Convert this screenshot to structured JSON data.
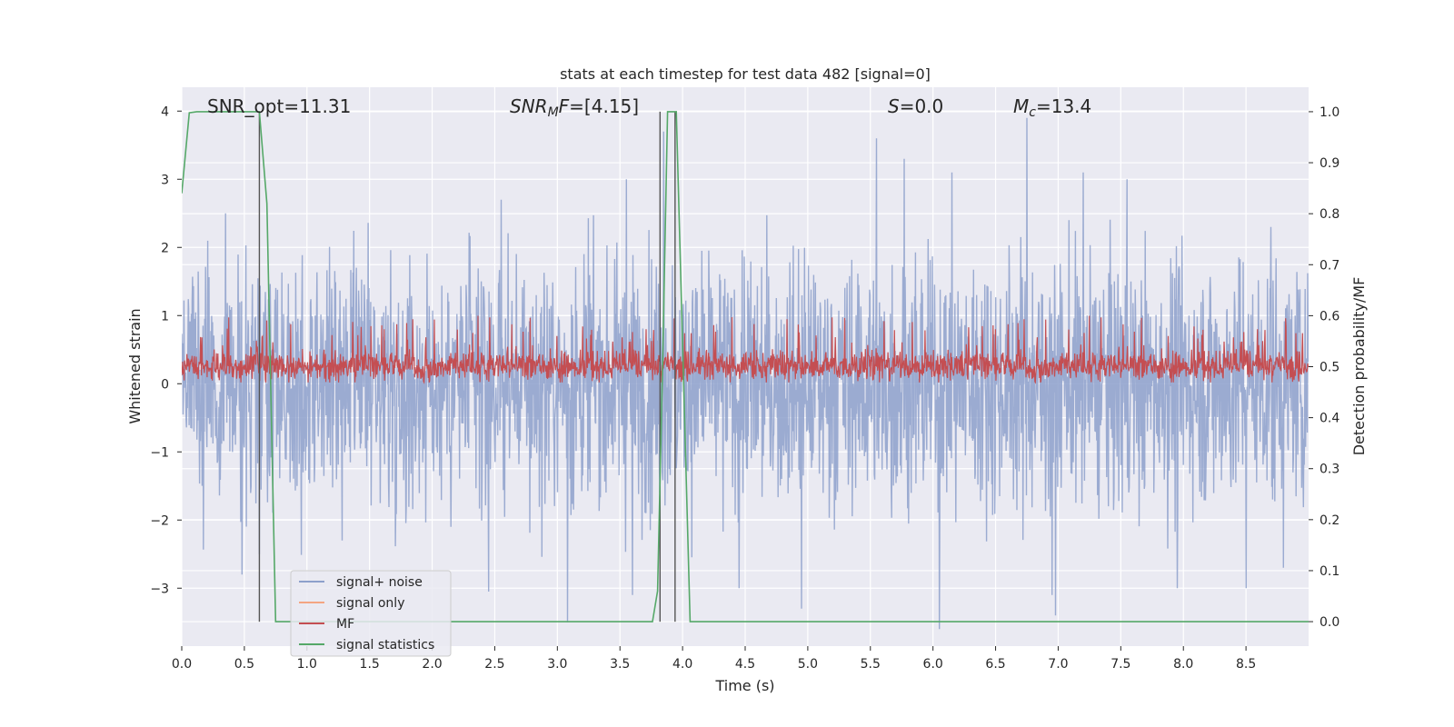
{
  "chart_data": {
    "type": "line",
    "title": "stats at each timestep for test data 482 [signal=0]",
    "xlabel": "Time (s)",
    "ylabel": "Whitened strain",
    "ylabel_right": "Detection probability/MF",
    "xlim": [
      0.0,
      9.0
    ],
    "ylim": [
      -3.85,
      4.35
    ],
    "ylim_right": [
      -0.048,
      1.048
    ],
    "x_ticks": [
      0.0,
      0.5,
      1.0,
      1.5,
      2.0,
      2.5,
      3.0,
      3.5,
      4.0,
      4.5,
      5.0,
      5.5,
      6.0,
      6.5,
      7.0,
      7.5,
      8.0,
      8.5
    ],
    "x_tick_labels": [
      "0.0",
      "0.5",
      "1.0",
      "1.5",
      "2.0",
      "2.5",
      "3.0",
      "3.5",
      "4.0",
      "4.5",
      "5.0",
      "5.5",
      "6.0",
      "6.5",
      "7.0",
      "7.5",
      "8.0",
      "8.5"
    ],
    "y_ticks": [
      4,
      3,
      2,
      1,
      0,
      -1,
      -2,
      -3
    ],
    "y_tick_labels": [
      "4",
      "3",
      "2",
      "1",
      "0",
      "−1",
      "−2",
      "−3"
    ],
    "y_right_ticks": [
      1.0,
      0.9,
      0.8,
      0.7,
      0.6,
      0.5,
      0.4,
      0.3,
      0.2,
      0.1,
      0.0
    ],
    "y_right_tick_labels": [
      "1.0",
      "0.9",
      "0.8",
      "0.7",
      "0.6",
      "0.5",
      "0.4",
      "0.3",
      "0.2",
      "0.1",
      "0.0"
    ],
    "grid": true,
    "legend_position": "lower-left",
    "annotations": {
      "snr_opt": "SNR_opt=11.31",
      "snr_mf_sym": "SNR",
      "snr_mf_sub": "M",
      "snr_mf_sym2": "F",
      "snr_mf_val": "=[4.15]",
      "s_sym": "S",
      "s_val": "=0.0",
      "mc_sym": "M",
      "mc_sub": "c",
      "mc_val": "=13.4"
    },
    "vertical_lines_x": [
      0.62,
      3.82,
      3.94
    ],
    "series": [
      {
        "name": "signal+ noise",
        "color": "#8da0cb",
        "axis": "left",
        "noise_sigma": 0.9,
        "peaks": [
          [
            0.35,
            2.5
          ],
          [
            0.48,
            -2.8
          ],
          [
            0.62,
            2.6
          ],
          [
            0.62,
            -2.5
          ],
          [
            1.28,
            -2.3
          ],
          [
            2.45,
            -3.05
          ],
          [
            2.55,
            2.7
          ],
          [
            3.08,
            -3.5
          ],
          [
            3.55,
            3.0
          ],
          [
            3.6,
            -3.1
          ],
          [
            3.85,
            3.7
          ],
          [
            4.45,
            -3.0
          ],
          [
            4.95,
            -3.3
          ],
          [
            5.55,
            3.6
          ],
          [
            5.77,
            3.3
          ],
          [
            6.05,
            -3.6
          ],
          [
            6.15,
            3.1
          ],
          [
            6.75,
            3.9
          ],
          [
            6.95,
            -3.1
          ],
          [
            6.98,
            -3.4
          ],
          [
            7.2,
            3.1
          ],
          [
            7.55,
            3.0
          ],
          [
            7.95,
            -3.0
          ],
          [
            8.5,
            -3.0
          ],
          [
            8.7,
            2.3
          ],
          [
            8.8,
            -2.7
          ]
        ]
      },
      {
        "name": "signal only",
        "color": "#f4a582",
        "axis": "left",
        "points": []
      },
      {
        "name": "MF",
        "color": "#c44e52",
        "axis": "left",
        "base": 0.25,
        "noise_sigma": 0.12,
        "range": [
          0.02,
          1.0
        ]
      },
      {
        "name": "signal statistics",
        "color": "#55a868",
        "axis": "right",
        "x": [
          0.0,
          0.06,
          0.12,
          0.3,
          0.5,
          0.62,
          0.68,
          0.75,
          3.0,
          3.5,
          3.76,
          3.8,
          3.84,
          3.88,
          3.95,
          4.06,
          6.0,
          9.0
        ],
        "y": [
          0.84,
          0.998,
          1.0,
          1.0,
          1.0,
          1.0,
          0.82,
          0.0,
          0.0,
          0.0,
          0.0,
          0.06,
          0.5,
          1.0,
          1.0,
          0.0,
          0.0,
          0.0
        ]
      }
    ]
  }
}
